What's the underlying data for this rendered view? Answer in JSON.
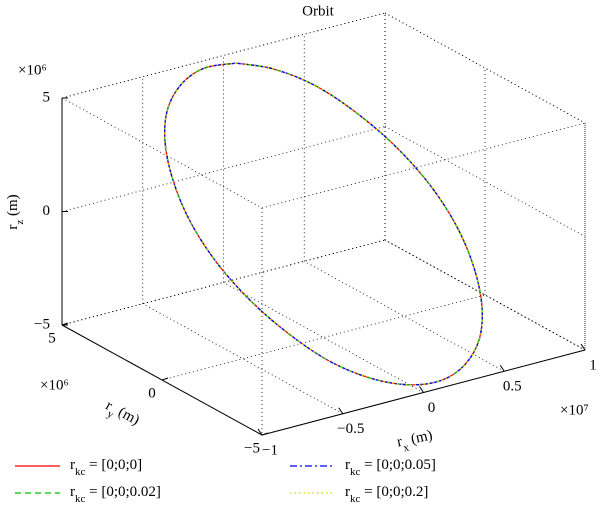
{
  "chart_data": {
    "type": "line3d",
    "title": "Orbit",
    "xlabel": "rx (m)",
    "ylabel": "ry (m)",
    "zlabel": "rz (m)",
    "xmultiplier": "×10⁷",
    "ymultiplier": "×10⁶",
    "zmultiplier": "×10⁶",
    "xlim": [
      -1,
      1
    ],
    "ylim": [
      -5,
      5
    ],
    "zlim": [
      -5,
      5
    ],
    "xticks": [
      {
        "value": -1,
        "label": "−1"
      },
      {
        "value": -0.5,
        "label": "−0.5"
      },
      0,
      0.5,
      1
    ],
    "yticks": [
      {
        "value": -5,
        "label": "−5"
      },
      0,
      5
    ],
    "zticks": [
      {
        "value": -5,
        "label": "−5"
      },
      0,
      5
    ],
    "grid": true,
    "series": [
      {
        "name": "rkc = [0;0;0]",
        "color": "#ff0000",
        "linestyle": "solid",
        "x": [
          0.03,
          0.17,
          0.3,
          0.4,
          0.48,
          0.53,
          0.54,
          0.51,
          0.45,
          0.36,
          0.24,
          0.11,
          -0.03,
          -0.17,
          -0.3,
          -0.4,
          -0.48,
          -0.53,
          -0.54,
          -0.51,
          -0.45,
          -0.36,
          -0.24,
          -0.11,
          0.03
        ],
        "y": [
          4.6,
          3.85,
          2.83,
          1.63,
          0.31,
          -1.03,
          -2.3,
          -3.41,
          -4.29,
          -4.88,
          -5.13,
          -5.04,
          -4.6,
          -3.85,
          -2.83,
          -1.63,
          -0.31,
          1.03,
          2.3,
          3.41,
          4.29,
          4.88,
          5.13,
          5.04,
          4.6
        ],
        "z": [
          4.8,
          4.64,
          4.16,
          3.39,
          2.4,
          1.24,
          0,
          -1.24,
          -2.4,
          -3.39,
          -4.16,
          -4.64,
          -4.8,
          -4.64,
          -4.16,
          -3.39,
          -2.4,
          -1.24,
          0,
          1.24,
          2.4,
          3.39,
          4.16,
          4.64,
          4.8
        ]
      },
      {
        "name": "rkc = [0;0;0.02]",
        "color": "#00c000",
        "linestyle": "dashed",
        "x": [
          0.03,
          0.17,
          0.3,
          0.4,
          0.48,
          0.53,
          0.54,
          0.51,
          0.45,
          0.36,
          0.24,
          0.11,
          -0.03,
          -0.17,
          -0.3,
          -0.4,
          -0.48,
          -0.53,
          -0.54,
          -0.51,
          -0.45,
          -0.36,
          -0.24,
          -0.11,
          0.03
        ],
        "y": [
          4.6,
          3.85,
          2.83,
          1.63,
          0.31,
          -1.03,
          -2.3,
          -3.41,
          -4.29,
          -4.88,
          -5.13,
          -5.04,
          -4.6,
          -3.85,
          -2.83,
          -1.63,
          -0.31,
          1.03,
          2.3,
          3.41,
          4.29,
          4.88,
          5.13,
          5.04,
          4.6
        ],
        "z": [
          4.8,
          4.64,
          4.16,
          3.39,
          2.4,
          1.24,
          0,
          -1.24,
          -2.4,
          -3.39,
          -4.16,
          -4.64,
          -4.8,
          -4.64,
          -4.16,
          -3.39,
          -2.4,
          -1.24,
          0,
          1.24,
          2.4,
          3.39,
          4.16,
          4.64,
          4.8
        ]
      },
      {
        "name": "rkc = [0;0;0.05]",
        "color": "#0000ff",
        "linestyle": "dashdot",
        "x": [
          0.03,
          0.17,
          0.3,
          0.4,
          0.48,
          0.53,
          0.54,
          0.51,
          0.45,
          0.36,
          0.24,
          0.11,
          -0.03,
          -0.17,
          -0.3,
          -0.4,
          -0.48,
          -0.53,
          -0.54,
          -0.51,
          -0.45,
          -0.36,
          -0.24,
          -0.11,
          0.03
        ],
        "y": [
          4.6,
          3.85,
          2.83,
          1.63,
          0.31,
          -1.03,
          -2.3,
          -3.41,
          -4.29,
          -4.88,
          -5.13,
          -5.04,
          -4.6,
          -3.85,
          -2.83,
          -1.63,
          -0.31,
          1.03,
          2.3,
          3.41,
          4.29,
          4.88,
          5.13,
          5.04,
          4.6
        ],
        "z": [
          4.8,
          4.64,
          4.16,
          3.39,
          2.4,
          1.24,
          0,
          -1.24,
          -2.4,
          -3.39,
          -4.16,
          -4.64,
          -4.8,
          -4.64,
          -4.16,
          -3.39,
          -2.4,
          -1.24,
          0,
          1.24,
          2.4,
          3.39,
          4.16,
          4.64,
          4.8
        ]
      },
      {
        "name": "rkc = [0;0;0.2]",
        "color": "#d4d400",
        "linestyle": "dotted",
        "x": [
          0.03,
          0.17,
          0.3,
          0.4,
          0.48,
          0.53,
          0.54,
          0.51,
          0.45,
          0.36,
          0.24,
          0.11,
          -0.03,
          -0.17,
          -0.3,
          -0.4,
          -0.48,
          -0.53,
          -0.54,
          -0.51,
          -0.45,
          -0.36,
          -0.24,
          -0.11,
          0.03
        ],
        "y": [
          4.6,
          3.85,
          2.83,
          1.63,
          0.31,
          -1.03,
          -2.3,
          -3.41,
          -4.29,
          -4.88,
          -5.13,
          -5.04,
          -4.6,
          -3.85,
          -2.83,
          -1.63,
          -0.31,
          1.03,
          2.3,
          3.41,
          4.29,
          4.88,
          5.13,
          5.04,
          4.6
        ],
        "z": [
          4.8,
          4.64,
          4.16,
          3.39,
          2.4,
          1.24,
          0,
          -1.24,
          -2.4,
          -3.39,
          -4.16,
          -4.64,
          -4.8,
          -4.64,
          -4.16,
          -3.39,
          -2.4,
          -1.24,
          0,
          1.24,
          2.4,
          3.39,
          4.16,
          4.64,
          4.8
        ]
      }
    ]
  }
}
